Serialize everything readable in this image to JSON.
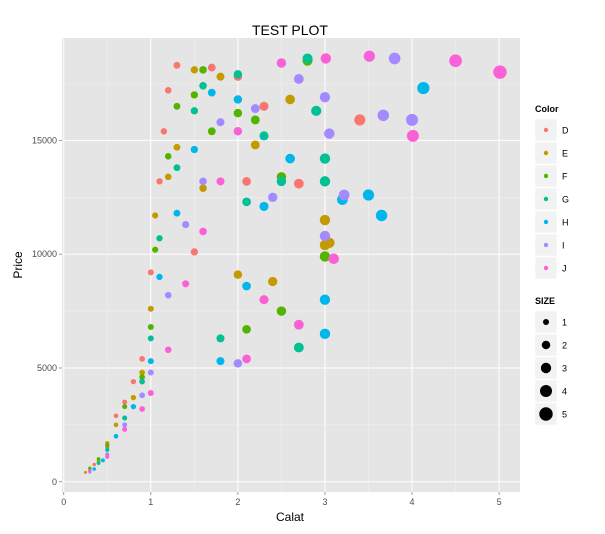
{
  "chart_data": {
    "type": "scatter",
    "title": "TEST PLOT",
    "xlabel": "Calat",
    "ylabel": "Price",
    "xlim": [
      -0.02,
      5.24
    ],
    "ylim": [
      -450,
      19500
    ],
    "x_ticks": [
      "0",
      "1",
      "2",
      "3",
      "4",
      "5"
    ],
    "y_ticks": [
      "0",
      "5000",
      "10000",
      "15000"
    ],
    "grid": true,
    "legend_position": "right",
    "color_legend": {
      "title": "Color",
      "entries": [
        {
          "label": "D",
          "color": "#F8766D"
        },
        {
          "label": "E",
          "color": "#C49A00"
        },
        {
          "label": "F",
          "color": "#53B400"
        },
        {
          "label": "G",
          "color": "#00C094"
        },
        {
          "label": "H",
          "color": "#00B6EB"
        },
        {
          "label": "I",
          "color": "#A58AFF"
        },
        {
          "label": "J",
          "color": "#FB61D7"
        }
      ]
    },
    "size_legend": {
      "title": "SIZE",
      "entries": [
        {
          "label": "1",
          "size": 1
        },
        {
          "label": "2",
          "size": 2
        },
        {
          "label": "3",
          "size": 3
        },
        {
          "label": "4",
          "size": 4
        },
        {
          "label": "5",
          "size": 5
        }
      ]
    },
    "series": [
      {
        "name": "D",
        "points": [
          [
            0.3,
            520
          ],
          [
            0.35,
            760
          ],
          [
            0.5,
            1500
          ],
          [
            0.6,
            2900
          ],
          [
            0.7,
            3500
          ],
          [
            0.8,
            4400
          ],
          [
            0.9,
            5400
          ],
          [
            1.0,
            9200
          ],
          [
            1.1,
            13200
          ],
          [
            1.15,
            15400
          ],
          [
            1.2,
            17200
          ],
          [
            1.3,
            18300
          ],
          [
            1.5,
            10100
          ],
          [
            1.7,
            18200
          ],
          [
            2.0,
            17800
          ],
          [
            2.1,
            13200
          ],
          [
            2.3,
            16500
          ],
          [
            2.7,
            13100
          ],
          [
            3.4,
            15900
          ]
        ]
      },
      {
        "name": "E",
        "points": [
          [
            0.25,
            410
          ],
          [
            0.4,
            900
          ],
          [
            0.5,
            1700
          ],
          [
            0.6,
            2500
          ],
          [
            0.8,
            3700
          ],
          [
            0.9,
            4800
          ],
          [
            1.0,
            7600
          ],
          [
            1.05,
            11700
          ],
          [
            1.2,
            13400
          ],
          [
            1.3,
            14700
          ],
          [
            1.5,
            18100
          ],
          [
            1.6,
            12900
          ],
          [
            1.8,
            17800
          ],
          [
            2.0,
            9100
          ],
          [
            2.2,
            14800
          ],
          [
            2.4,
            8800
          ],
          [
            2.6,
            16800
          ],
          [
            3.0,
            11500
          ],
          [
            3.0,
            10400
          ],
          [
            3.05,
            10500
          ]
        ]
      },
      {
        "name": "F",
        "points": [
          [
            0.3,
            600
          ],
          [
            0.4,
            1000
          ],
          [
            0.5,
            1600
          ],
          [
            0.7,
            3300
          ],
          [
            0.9,
            4600
          ],
          [
            1.0,
            6800
          ],
          [
            1.05,
            10200
          ],
          [
            1.2,
            14300
          ],
          [
            1.3,
            16500
          ],
          [
            1.5,
            17000
          ],
          [
            1.6,
            18100
          ],
          [
            1.7,
            15400
          ],
          [
            2.0,
            16200
          ],
          [
            2.1,
            6700
          ],
          [
            2.2,
            15900
          ],
          [
            2.5,
            13400
          ],
          [
            2.8,
            18500
          ],
          [
            3.0,
            9900
          ],
          [
            2.5,
            7500
          ]
        ]
      },
      {
        "name": "G",
        "points": [
          [
            0.3,
            480
          ],
          [
            0.4,
            820
          ],
          [
            0.5,
            1400
          ],
          [
            0.7,
            2800
          ],
          [
            0.9,
            4400
          ],
          [
            1.0,
            6300
          ],
          [
            1.1,
            10700
          ],
          [
            1.3,
            13800
          ],
          [
            1.5,
            16300
          ],
          [
            1.6,
            17400
          ],
          [
            1.8,
            6300
          ],
          [
            2.0,
            17900
          ],
          [
            2.1,
            12300
          ],
          [
            2.3,
            15200
          ],
          [
            2.5,
            13200
          ],
          [
            2.7,
            5900
          ],
          [
            2.8,
            18600
          ],
          [
            3.0,
            13200
          ],
          [
            3.0,
            14200
          ],
          [
            2.9,
            16300
          ]
        ]
      },
      {
        "name": "H",
        "points": [
          [
            0.35,
            560
          ],
          [
            0.45,
            940
          ],
          [
            0.6,
            2000
          ],
          [
            0.8,
            3300
          ],
          [
            1.0,
            5300
          ],
          [
            1.1,
            9000
          ],
          [
            1.3,
            11800
          ],
          [
            1.5,
            14600
          ],
          [
            1.7,
            17100
          ],
          [
            1.8,
            5300
          ],
          [
            2.0,
            16800
          ],
          [
            2.1,
            8600
          ],
          [
            2.3,
            12100
          ],
          [
            2.6,
            14200
          ],
          [
            3.0,
            8000
          ],
          [
            3.0,
            6500
          ],
          [
            3.2,
            12400
          ],
          [
            3.5,
            12600
          ],
          [
            3.65,
            11700
          ],
          [
            4.13,
            17300
          ]
        ]
      },
      {
        "name": "I",
        "points": [
          [
            0.3,
            430
          ],
          [
            0.5,
            1200
          ],
          [
            0.7,
            2500
          ],
          [
            0.9,
            3800
          ],
          [
            1.0,
            4800
          ],
          [
            1.2,
            8200
          ],
          [
            1.4,
            11300
          ],
          [
            1.6,
            13200
          ],
          [
            1.8,
            15800
          ],
          [
            2.0,
            5200
          ],
          [
            2.2,
            16400
          ],
          [
            2.4,
            12500
          ],
          [
            2.7,
            17700
          ],
          [
            3.0,
            16900
          ],
          [
            3.0,
            10800
          ],
          [
            3.05,
            15300
          ],
          [
            3.22,
            12600
          ],
          [
            3.67,
            16100
          ],
          [
            4.0,
            15900
          ],
          [
            3.8,
            18600
          ]
        ]
      },
      {
        "name": "J",
        "points": [
          [
            0.3,
            470
          ],
          [
            0.5,
            1100
          ],
          [
            0.7,
            2300
          ],
          [
            0.9,
            3200
          ],
          [
            1.0,
            3900
          ],
          [
            1.2,
            5800
          ],
          [
            1.4,
            8700
          ],
          [
            1.6,
            11000
          ],
          [
            1.8,
            13200
          ],
          [
            2.0,
            15400
          ],
          [
            2.1,
            5400
          ],
          [
            2.3,
            8000
          ],
          [
            2.5,
            18400
          ],
          [
            2.7,
            6900
          ],
          [
            3.01,
            18600
          ],
          [
            3.1,
            9800
          ],
          [
            3.51,
            18700
          ],
          [
            4.01,
            15200
          ],
          [
            4.5,
            18500
          ],
          [
            5.01,
            18000
          ]
        ]
      }
    ]
  }
}
